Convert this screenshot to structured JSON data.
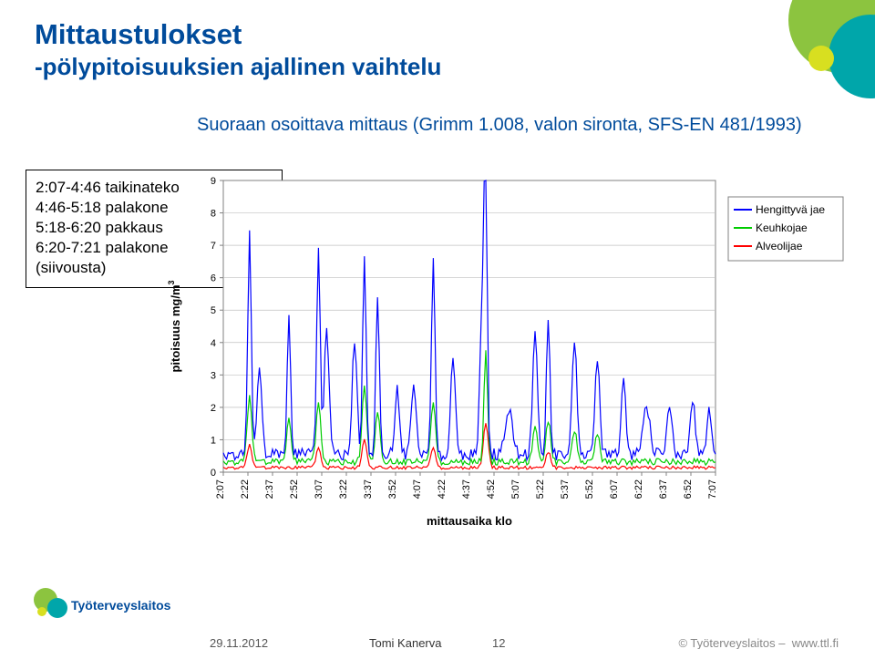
{
  "title": "Mittaustulokset",
  "subtitle_line": "-pölypitoisuuksien ajallinen vaihtelu",
  "chart_subtitle": "Suoraan osoittava mittaus (Grimm 1.008, valon sironta, SFS-EN 481/1993)",
  "infobox": {
    "l1": "2:07-4:46 taikinateko",
    "l2": "4:46-5:18 palakone",
    "l3": "5:18-6:20 pakkaus",
    "l4": "6:20-7:21 palakone",
    "l5": "(siivousta)"
  },
  "chart": {
    "type": "line",
    "ylabel": "pitoisuus mg/m",
    "ylabel_sup": "3",
    "xlabel": "mittausaika klo",
    "ylim": [
      0,
      9
    ],
    "ytick_step": 1,
    "yticks": [
      0,
      1,
      2,
      3,
      4,
      5,
      6,
      7,
      8,
      9
    ],
    "xticks": [
      "2:07",
      "2:22",
      "2:37",
      "2:52",
      "3:07",
      "3:22",
      "3:37",
      "3:52",
      "4:07",
      "4:22",
      "4:37",
      "4:52",
      "5:07",
      "5:22",
      "5:37",
      "5:52",
      "6:07",
      "6:22",
      "6:37",
      "6:52",
      "7:07"
    ],
    "plot_bg": "#ffffff",
    "border_color": "#808080",
    "grid_color": "#c0c0c0",
    "tick_font_size": 11,
    "label_font_size": 13,
    "legend": {
      "items": [
        {
          "label": "Hengittyvä jae",
          "color": "#0000ff"
        },
        {
          "label": "Keuhkojae",
          "color": "#00cc00"
        },
        {
          "label": "Alveolijae",
          "color": "#ff0000"
        }
      ],
      "border_color": "#808080",
      "bg": "#ffffff",
      "font_size": 12
    },
    "line_width": 1.2,
    "n_points": 301,
    "series": {
      "hengittyva": {
        "color": "#0000ff",
        "base": 0.55,
        "noise": 0.18,
        "peaks": [
          {
            "i": 16,
            "h": 6.8,
            "w": 1.5
          },
          {
            "i": 22,
            "h": 2.6,
            "w": 2
          },
          {
            "i": 40,
            "h": 4.2,
            "w": 1.5
          },
          {
            "i": 58,
            "h": 6.3,
            "w": 1.5
          },
          {
            "i": 63,
            "h": 4.0,
            "w": 2
          },
          {
            "i": 80,
            "h": 3.6,
            "w": 2
          },
          {
            "i": 86,
            "h": 6.2,
            "w": 1.5
          },
          {
            "i": 94,
            "h": 4.8,
            "w": 1.5
          },
          {
            "i": 106,
            "h": 2.0,
            "w": 2
          },
          {
            "i": 116,
            "h": 2.2,
            "w": 2
          },
          {
            "i": 128,
            "h": 6.0,
            "w": 1.5
          },
          {
            "i": 140,
            "h": 3.0,
            "w": 2
          },
          {
            "i": 160,
            "h": 8.9,
            "w": 1.2
          },
          {
            "i": 158,
            "h": 5.0,
            "w": 2
          },
          {
            "i": 174,
            "h": 1.4,
            "w": 3
          },
          {
            "i": 190,
            "h": 3.8,
            "w": 2
          },
          {
            "i": 198,
            "h": 4.3,
            "w": 1.5
          },
          {
            "i": 214,
            "h": 3.6,
            "w": 2
          },
          {
            "i": 228,
            "h": 3.0,
            "w": 2
          },
          {
            "i": 244,
            "h": 2.2,
            "w": 2
          },
          {
            "i": 258,
            "h": 1.4,
            "w": 3
          },
          {
            "i": 272,
            "h": 1.6,
            "w": 2
          },
          {
            "i": 286,
            "h": 1.7,
            "w": 2
          },
          {
            "i": 296,
            "h": 1.3,
            "w": 2
          }
        ]
      },
      "keuhko": {
        "color": "#00cc00",
        "base": 0.32,
        "noise": 0.1,
        "peaks": [
          {
            "i": 16,
            "h": 2.0,
            "w": 2
          },
          {
            "i": 40,
            "h": 1.3,
            "w": 2
          },
          {
            "i": 58,
            "h": 1.8,
            "w": 2
          },
          {
            "i": 86,
            "h": 2.4,
            "w": 2
          },
          {
            "i": 94,
            "h": 1.5,
            "w": 2
          },
          {
            "i": 128,
            "h": 1.8,
            "w": 2
          },
          {
            "i": 160,
            "h": 3.5,
            "w": 1.5
          },
          {
            "i": 190,
            "h": 1.1,
            "w": 2
          },
          {
            "i": 198,
            "h": 1.3,
            "w": 2
          },
          {
            "i": 214,
            "h": 1.0,
            "w": 2
          },
          {
            "i": 228,
            "h": 0.9,
            "w": 2
          }
        ]
      },
      "alveoli": {
        "color": "#ff0000",
        "base": 0.14,
        "noise": 0.05,
        "peaks": [
          {
            "i": 16,
            "h": 0.7,
            "w": 2
          },
          {
            "i": 58,
            "h": 0.6,
            "w": 2
          },
          {
            "i": 86,
            "h": 0.9,
            "w": 2
          },
          {
            "i": 128,
            "h": 0.6,
            "w": 2
          },
          {
            "i": 160,
            "h": 1.4,
            "w": 2
          },
          {
            "i": 198,
            "h": 0.5,
            "w": 2
          }
        ]
      }
    }
  },
  "footer": {
    "date": "29.11.2012",
    "author": "Tomi Kanerva",
    "page": "12",
    "org": "© Työterveyslaitos   –",
    "url": "www.ttl.fi"
  },
  "logo": {
    "brand": "Työterveyslaitos",
    "colors": {
      "green": "#8cc43f",
      "teal": "#00a6aa",
      "yellow": "#d8df20"
    }
  }
}
